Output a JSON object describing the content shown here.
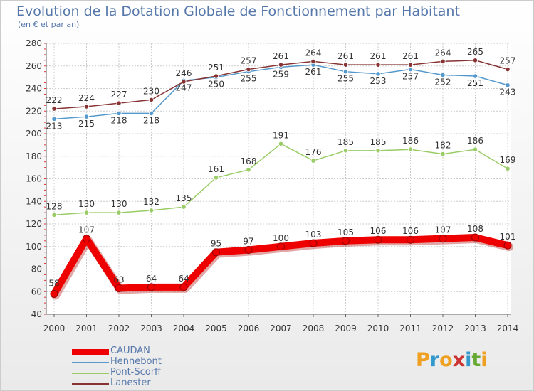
{
  "title": "Evolution de la Dotation Globale de Fonctionnement par Habitant",
  "subtitle": "(en € et par an)",
  "logo": {
    "text": "Proxiti",
    "letters": [
      "P",
      "r",
      "o",
      "x",
      "i",
      "t",
      "i"
    ],
    "colors": [
      "#f0a020",
      "#3399cc",
      "#f0a020",
      "#cc3333",
      "#3399cc",
      "#66aa33",
      "#f0a020"
    ]
  },
  "chart_data": {
    "type": "line",
    "title": "Evolution de la Dotation Globale de Fonctionnement par Habitant",
    "ylabel": "(en € et par an)",
    "xlabel": "",
    "ylim": [
      40,
      280
    ],
    "yticks": [
      40,
      60,
      80,
      100,
      120,
      140,
      160,
      180,
      200,
      220,
      240,
      260,
      280
    ],
    "grid": true,
    "categories": [
      "2000",
      "2001",
      "2002",
      "2003",
      "2004",
      "2005",
      "2006",
      "2007",
      "2008",
      "2009",
      "2010",
      "2011",
      "2012",
      "2013",
      "2014"
    ],
    "series": [
      {
        "name": "CAUDAN",
        "color": "#ee0000",
        "values": [
          58,
          107,
          63,
          64,
          64,
          95,
          97,
          100,
          103,
          105,
          106,
          106,
          107,
          108,
          101
        ]
      },
      {
        "name": "Hennebont",
        "color": "#5599cc",
        "values": [
          213,
          215,
          218,
          218,
          247,
          250,
          255,
          259,
          261,
          255,
          253,
          257,
          252,
          251,
          243
        ]
      },
      {
        "name": "Pont-Scorff",
        "color": "#99cc66",
        "values": [
          128,
          130,
          130,
          132,
          135,
          161,
          168,
          191,
          176,
          185,
          185,
          186,
          182,
          186,
          169
        ]
      },
      {
        "name": "Lanester",
        "color": "#883333",
        "values": [
          222,
          224,
          227,
          230,
          246,
          251,
          257,
          261,
          264,
          261,
          261,
          261,
          264,
          265,
          257
        ]
      }
    ]
  }
}
